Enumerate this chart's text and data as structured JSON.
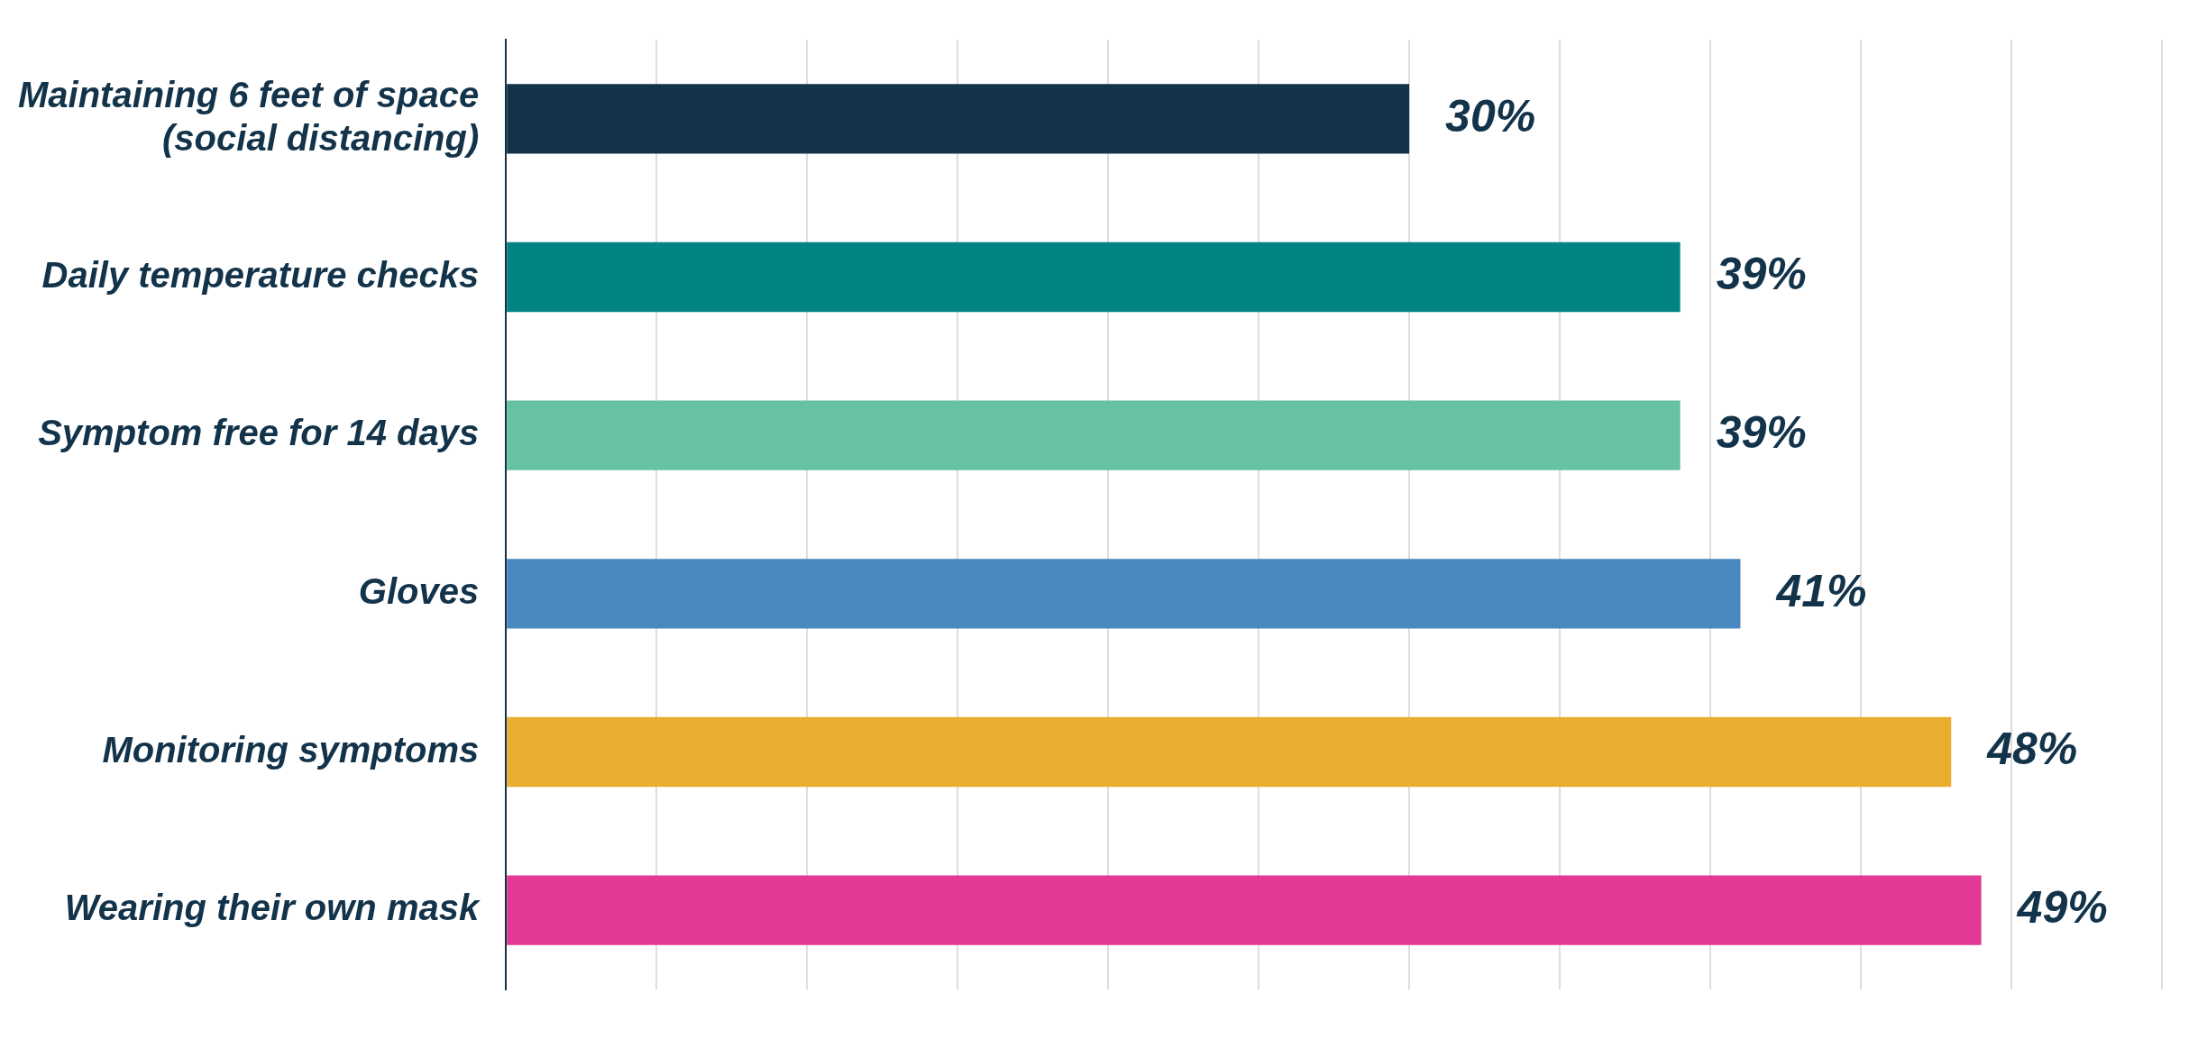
{
  "chart_data": {
    "type": "bar",
    "orientation": "horizontal",
    "categories": [
      "Maintaining 6 feet of space (social distancing)",
      "Daily temperature checks",
      "Symptom free for 14 days",
      "Gloves",
      "Monitoring symptoms",
      "Wearing their own mask"
    ],
    "values": [
      30,
      39,
      39,
      41,
      48,
      49
    ],
    "colors": [
      "#12334a",
      "#028484",
      "#66c2a0",
      "#4a89bf",
      "#eaad2f",
      "#e33a97"
    ],
    "value_labels": [
      "30%",
      "39%",
      "39%",
      "41%",
      "48%",
      "49%"
    ],
    "xlim": [
      0,
      55
    ],
    "xticks": [
      {
        "value": 0,
        "label": null
      },
      {
        "value": 5,
        "label": null
      },
      {
        "value": 10,
        "label": null
      },
      {
        "value": 15,
        "label": null
      },
      {
        "value": 20,
        "label": null
      },
      {
        "value": 25,
        "label": null
      },
      {
        "value": 30,
        "label": null
      },
      {
        "value": 35,
        "label": null
      },
      {
        "value": 40,
        "label": null
      },
      {
        "value": 45,
        "label": null
      },
      {
        "value": 50,
        "label": null
      },
      {
        "value": 55,
        "label": null
      }
    ],
    "tick_labels": "y",
    "grid": "x",
    "legend": false
  }
}
